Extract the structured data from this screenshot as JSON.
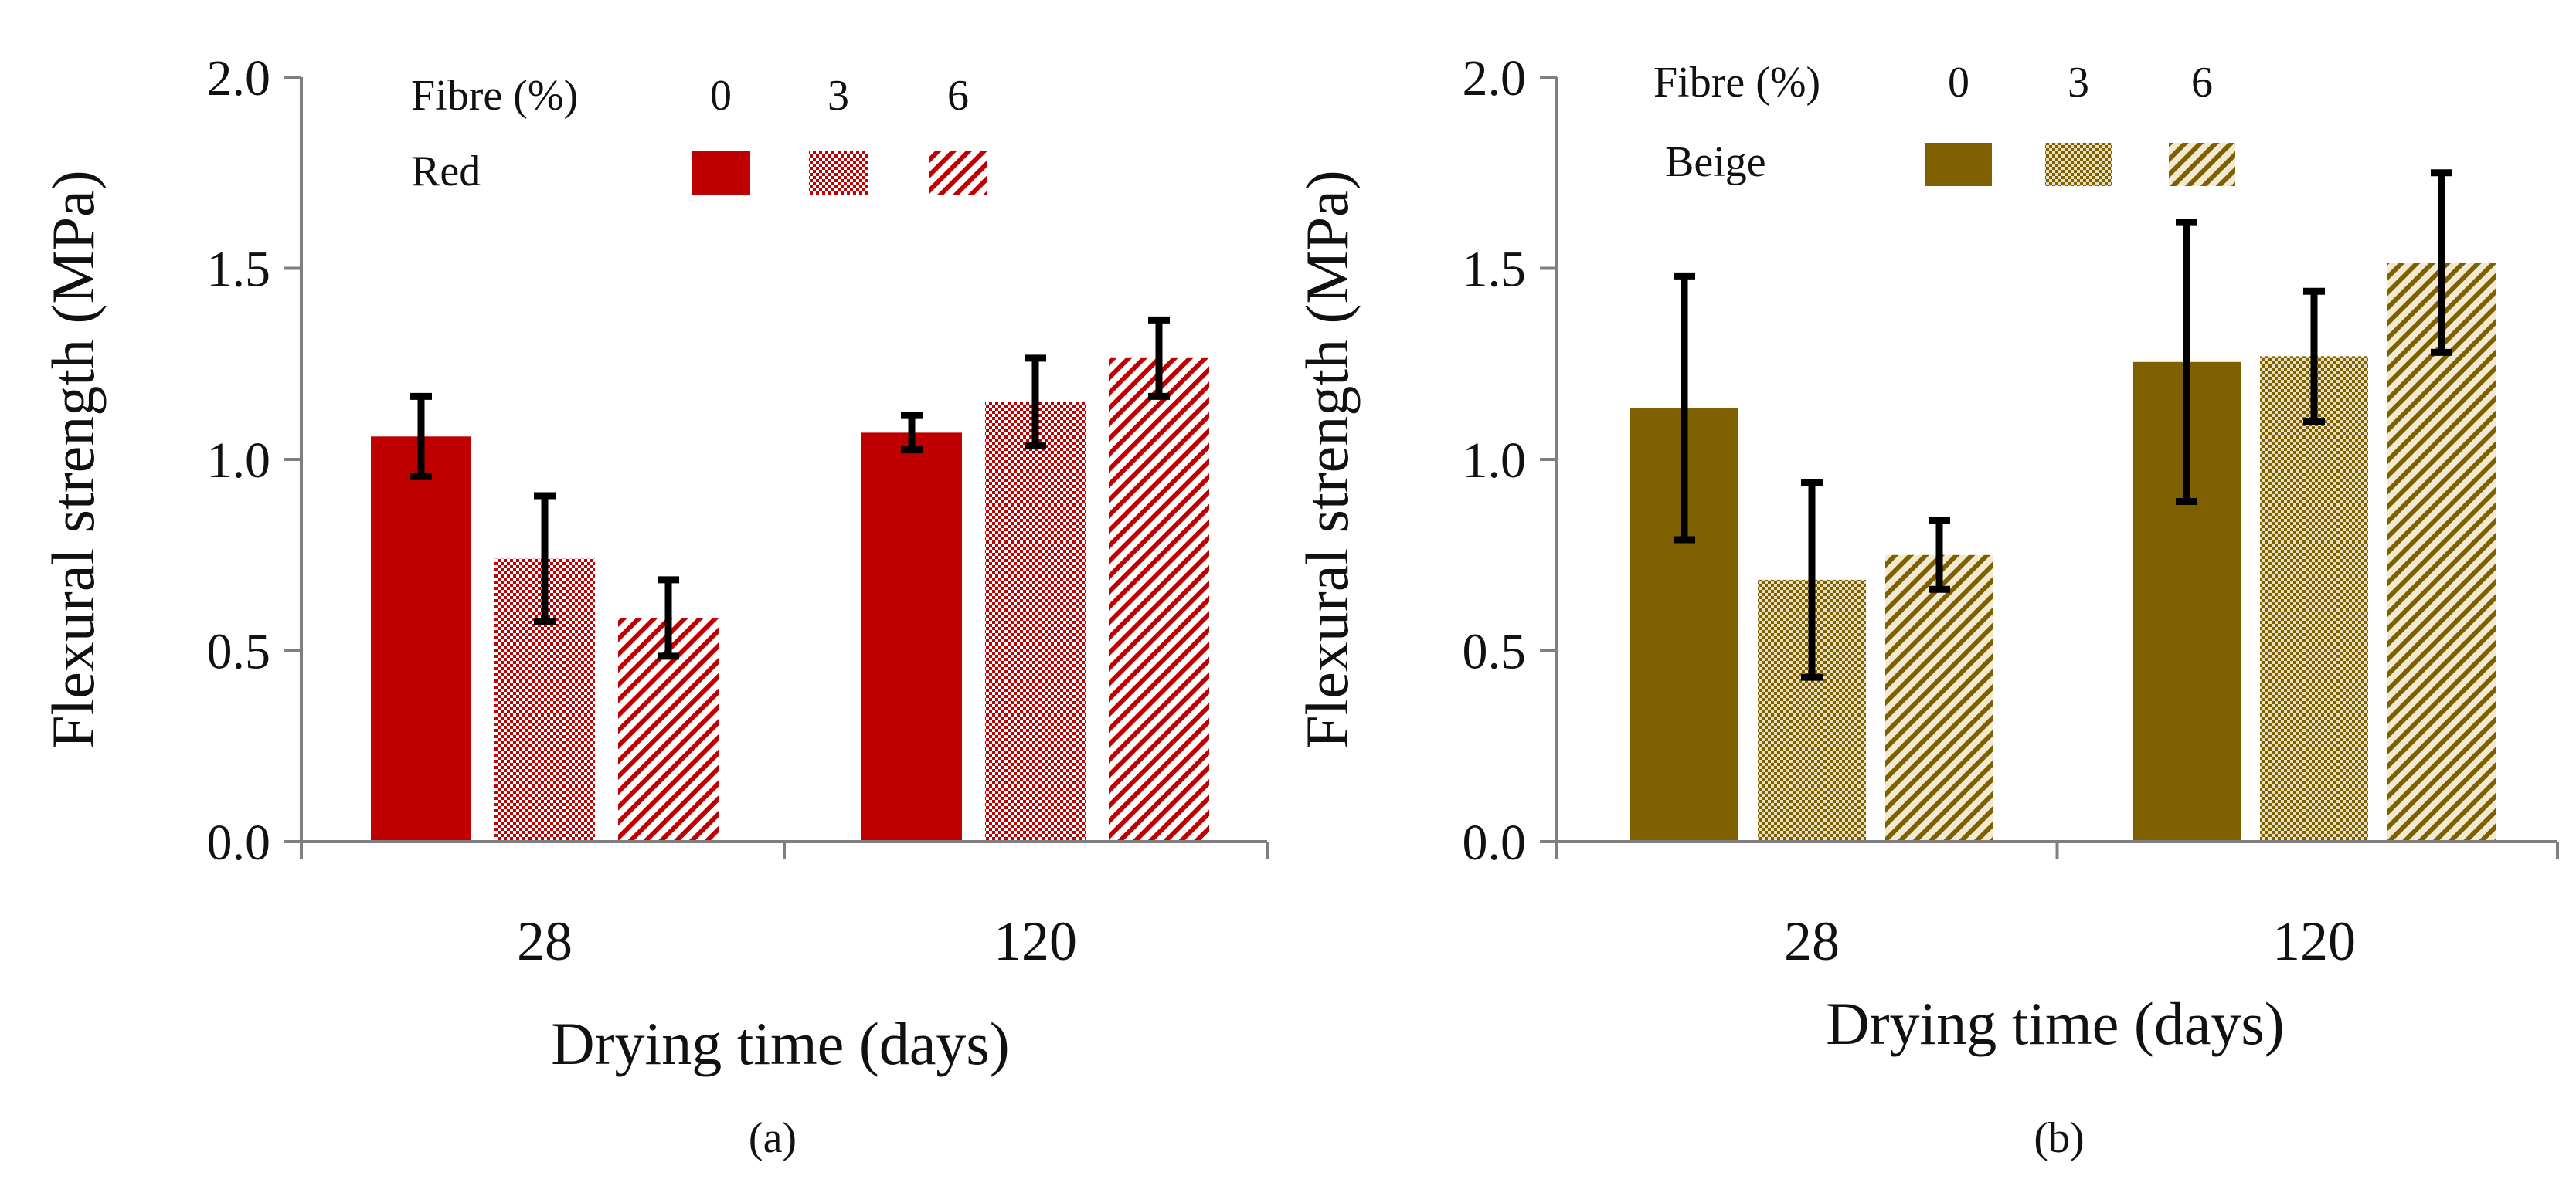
{
  "chart_data": [
    {
      "type": "bar",
      "panel_label": "(a)",
      "xlabel": "Drying time (days)",
      "ylabel": "Flexural strength (MPa)",
      "ylim": [
        0,
        2.0
      ],
      "yticks": [
        "0.0",
        "0.5",
        "1.0",
        "1.5",
        "2.0"
      ],
      "categories": [
        "28",
        "120"
      ],
      "legend": {
        "title": "Fibre (%)",
        "group": "Red",
        "placement": "top",
        "entries": [
          "0",
          "3",
          "6"
        ]
      },
      "color": "#c00000",
      "series": [
        {
          "name": "0",
          "pattern": "solid",
          "values": [
            1.06,
            1.07
          ],
          "errors": [
            0.105,
            0.045
          ]
        },
        {
          "name": "3",
          "pattern": "checker",
          "values": [
            0.74,
            1.15
          ],
          "errors": [
            0.165,
            0.115
          ]
        },
        {
          "name": "6",
          "pattern": "diagonal",
          "values": [
            0.585,
            1.265
          ],
          "errors": [
            0.1,
            0.1
          ]
        }
      ]
    },
    {
      "type": "bar",
      "panel_label": "(b)",
      "xlabel": "Drying time (days)",
      "ylabel": "Flexural strength (MPa)",
      "ylim": [
        0,
        2.0
      ],
      "yticks": [
        "0.0",
        "0.5",
        "1.0",
        "1.5",
        "2.0"
      ],
      "categories": [
        "28",
        "120"
      ],
      "legend": {
        "title": "Fibre (%)",
        "group": "Beige",
        "placement": "top",
        "entries": [
          "0",
          "3",
          "6"
        ]
      },
      "color": "#7f6000",
      "series": [
        {
          "name": "0",
          "pattern": "solid",
          "values": [
            1.135,
            1.255
          ],
          "errors": [
            0.345,
            0.365
          ]
        },
        {
          "name": "3",
          "pattern": "checker",
          "values": [
            0.685,
            1.27
          ],
          "errors": [
            0.255,
            0.17
          ]
        },
        {
          "name": "6",
          "pattern": "diagonal",
          "values": [
            0.75,
            1.515
          ],
          "errors": [
            0.09,
            0.235
          ]
        }
      ]
    }
  ]
}
